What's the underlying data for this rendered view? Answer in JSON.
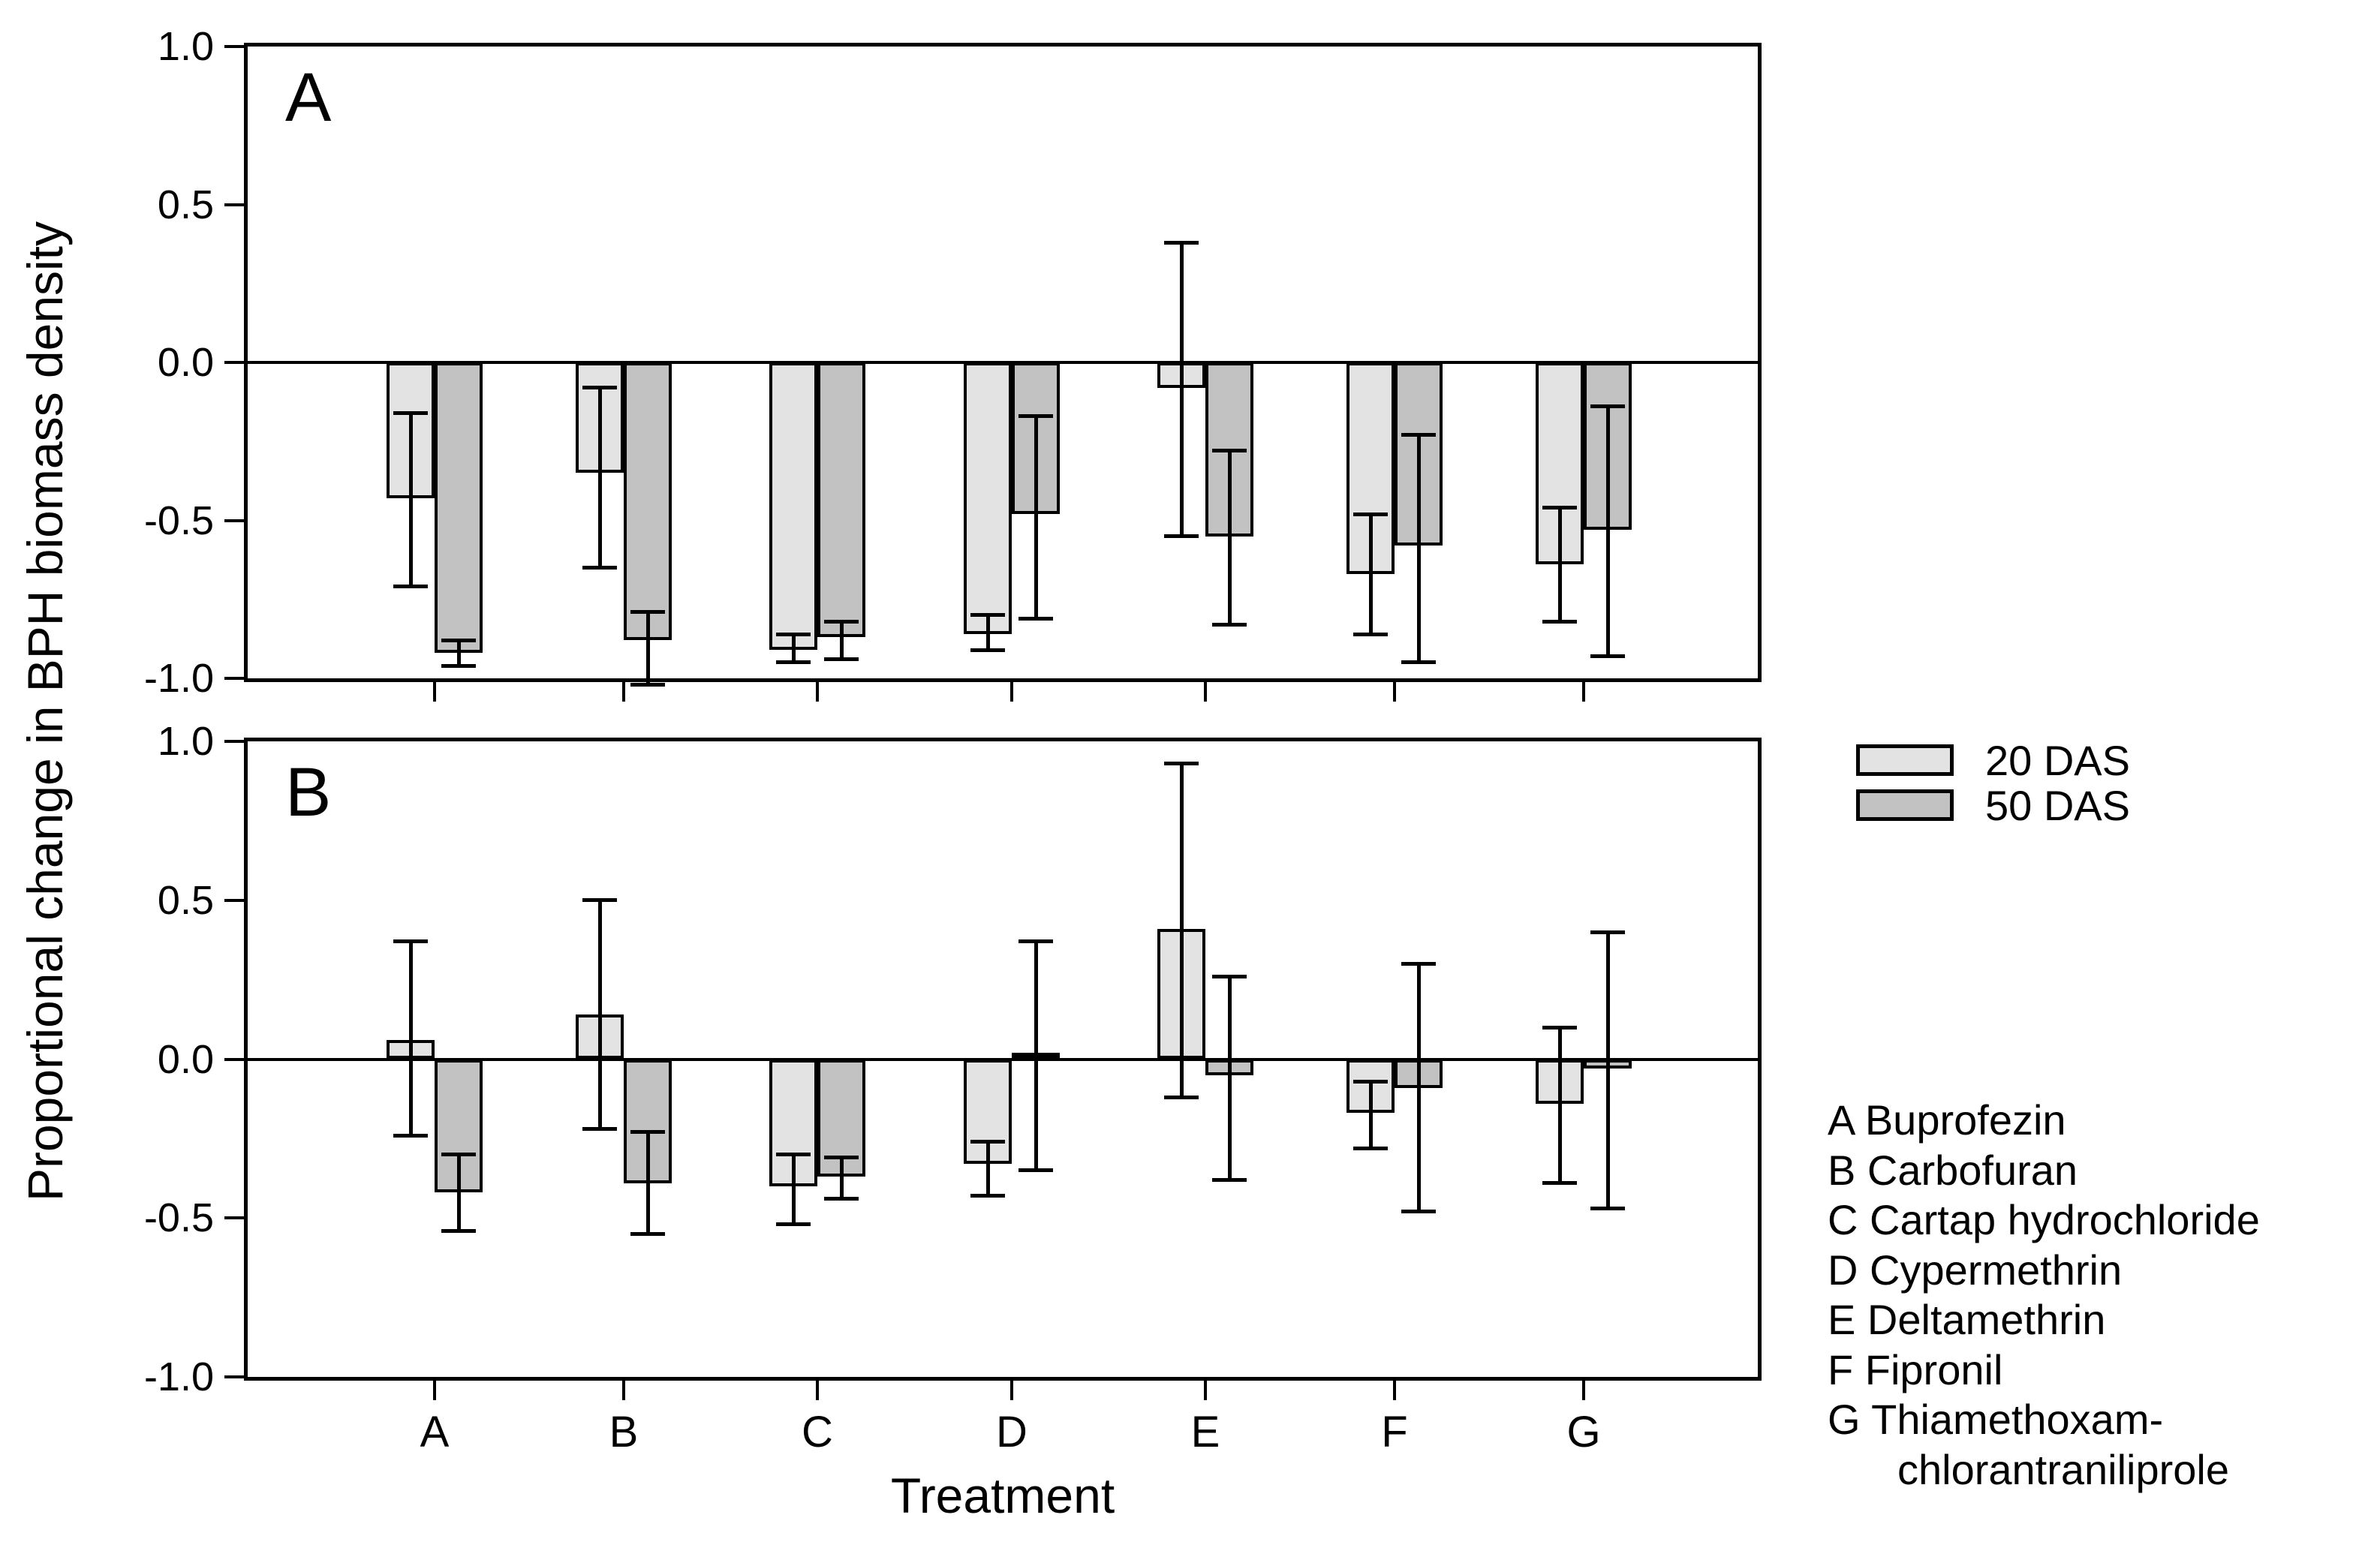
{
  "y_axis": {
    "title": "Proportional change in BPH biomass density",
    "tick_labels": [
      "1.0",
      "0.5",
      "0.0",
      "-0.5",
      "-1.0"
    ],
    "tick_values": [
      1.0,
      0.5,
      0.0,
      -0.5,
      -1.0
    ]
  },
  "x_axis": {
    "title": "Treatment",
    "categories": [
      "A",
      "B",
      "C",
      "D",
      "E",
      "F",
      "G"
    ]
  },
  "panel_labels": [
    "A",
    "B"
  ],
  "legend": {
    "items": [
      {
        "label": "20 DAS",
        "color": "#e3e3e3"
      },
      {
        "label": "50 DAS",
        "color": "#c2c2c2"
      }
    ]
  },
  "treatment_key": {
    "lines": [
      "A Buprofezin",
      "B Carbofuran",
      "C Cartap hydrochloride",
      "D Cypermethrin",
      "E Deltamethrin",
      "F Fipronil",
      "G Thiamethoxam-",
      "chlorantraniliprole"
    ]
  },
  "colors": {
    "bar_light": "#e3e3e3",
    "bar_dark": "#c2c2c2",
    "stroke": "#000000"
  },
  "chart_data": [
    {
      "type": "bar",
      "panel": "A",
      "title": "",
      "xlabel": "Treatment",
      "ylabel": "Proportional change in BPH biomass density",
      "ylim": [
        -1.0,
        1.0
      ],
      "grid": false,
      "categories": [
        "A",
        "B",
        "C",
        "D",
        "E",
        "F",
        "G"
      ],
      "series": [
        {
          "name": "20 DAS",
          "values": [
            -0.43,
            -0.35,
            -0.91,
            -0.86,
            -0.08,
            -0.67,
            -0.64
          ],
          "err_hi": [
            -0.16,
            -0.08,
            -0.86,
            -0.8,
            0.38,
            -0.48,
            -0.46
          ],
          "err_lo": [
            -0.71,
            -0.65,
            -0.95,
            -0.91,
            -0.55,
            -0.86,
            -0.82
          ]
        },
        {
          "name": "50 DAS",
          "values": [
            -0.92,
            -0.88,
            -0.87,
            -0.48,
            -0.55,
            -0.58,
            -0.53
          ],
          "err_hi": [
            -0.88,
            -0.79,
            -0.82,
            -0.17,
            -0.28,
            -0.23,
            -0.14
          ],
          "err_lo": [
            -0.96,
            -1.02,
            -0.94,
            -0.81,
            -0.83,
            -0.95,
            -0.93
          ]
        }
      ]
    },
    {
      "type": "bar",
      "panel": "B",
      "title": "",
      "xlabel": "Treatment",
      "ylabel": "Proportional change in BPH biomass density",
      "ylim": [
        -1.0,
        1.0
      ],
      "grid": false,
      "categories": [
        "A",
        "B",
        "C",
        "D",
        "E",
        "F",
        "G"
      ],
      "series": [
        {
          "name": "20 DAS",
          "values": [
            0.06,
            0.14,
            -0.4,
            -0.33,
            0.41,
            -0.17,
            -0.14
          ],
          "err_hi": [
            0.37,
            0.5,
            -0.3,
            -0.26,
            0.93,
            -0.07,
            0.1
          ],
          "err_lo": [
            -0.24,
            -0.22,
            -0.52,
            -0.43,
            -0.12,
            -0.28,
            -0.39
          ]
        },
        {
          "name": "50 DAS",
          "values": [
            -0.42,
            -0.39,
            -0.37,
            0.02,
            -0.05,
            -0.09,
            -0.03
          ],
          "err_hi": [
            -0.3,
            -0.23,
            -0.31,
            0.37,
            0.26,
            0.3,
            0.4
          ],
          "err_lo": [
            -0.54,
            -0.55,
            -0.44,
            -0.35,
            -0.38,
            -0.48,
            -0.47
          ]
        }
      ]
    }
  ]
}
